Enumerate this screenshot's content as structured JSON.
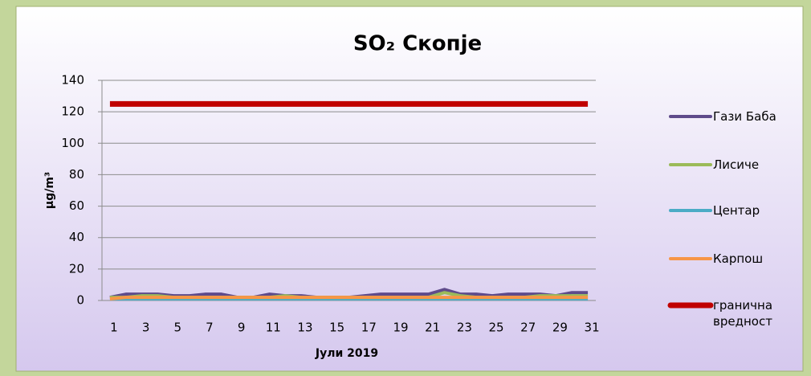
{
  "chart_data": {
    "type": "line",
    "title": "SO₂ Скопје",
    "x_label": "Јули 2019",
    "y_label": "μg/m³",
    "categories": [
      1,
      null,
      3,
      null,
      5,
      null,
      7,
      null,
      9,
      null,
      11,
      null,
      13,
      null,
      15,
      null,
      17,
      null,
      19,
      null,
      21,
      null,
      23,
      null,
      25,
      null,
      27,
      null,
      29,
      null,
      31
    ],
    "ylim": [
      0,
      140
    ],
    "yticks": [
      0,
      20,
      40,
      60,
      80,
      100,
      120,
      140
    ],
    "grid": true,
    "legend": "right",
    "series": [
      {
        "name": "Гази Баба",
        "color": "#5f4b8b",
        "values": [
          2,
          4,
          4,
          4,
          3,
          3,
          4,
          4,
          2,
          2,
          4,
          3,
          3,
          2,
          2,
          2,
          3,
          4,
          4,
          4,
          4,
          7,
          4,
          4,
          3,
          4,
          4,
          4,
          3,
          5,
          5
        ]
      },
      {
        "name": "Лисиче",
        "color": "#9bbb59",
        "values": [
          2,
          2,
          3,
          3,
          2,
          2,
          2,
          2,
          2,
          2,
          2,
          3,
          2,
          2,
          2,
          2,
          2,
          2,
          2,
          2,
          2,
          5,
          3,
          2,
          2,
          2,
          2,
          3,
          3,
          3,
          3
        ]
      },
      {
        "name": "Центар",
        "color": "#4bacc6",
        "values": [
          1,
          1,
          1,
          1,
          1,
          1,
          1,
          1,
          1,
          1,
          1,
          1,
          1,
          1,
          1,
          1,
          1,
          1,
          1,
          1,
          1,
          1,
          1,
          1,
          1,
          1,
          1,
          1,
          1,
          1,
          1
        ]
      },
      {
        "name": "Карпош",
        "color": "#f79646",
        "values": [
          1,
          2,
          2,
          2,
          2,
          2,
          2,
          2,
          2,
          2,
          2,
          2,
          2,
          2,
          2,
          2,
          2,
          2,
          2,
          2,
          2,
          2,
          2,
          2,
          2,
          2,
          2,
          2,
          2,
          2,
          2
        ]
      },
      {
        "name": "гранична вредност",
        "color": "#c00000",
        "values": [
          125,
          125,
          125,
          125,
          125,
          125,
          125,
          125,
          125,
          125,
          125,
          125,
          125,
          125,
          125,
          125,
          125,
          125,
          125,
          125,
          125,
          125,
          125,
          125,
          125,
          125,
          125,
          125,
          125,
          125,
          125
        ]
      }
    ]
  }
}
